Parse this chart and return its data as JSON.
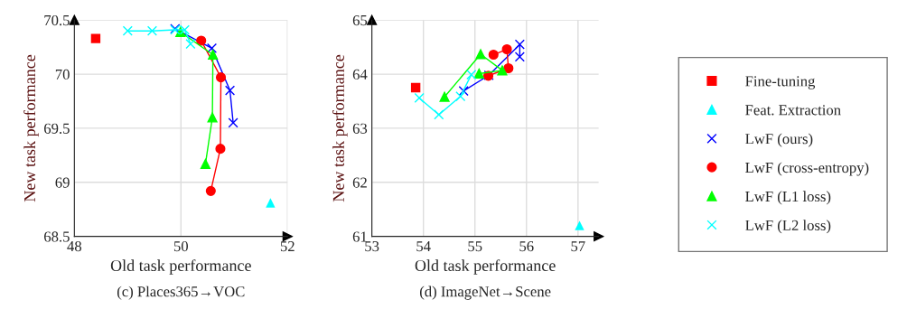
{
  "chart_data": [
    {
      "type": "line",
      "xlabel": "Old task performance",
      "ylabel": "New task performance",
      "annotations": [
        "(c) Places365→VOC"
      ],
      "xlim": [
        48,
        52
      ],
      "xticks": [
        48,
        50,
        52
      ],
      "ylim": [
        68.5,
        70.5
      ],
      "yticks": [
        68.5,
        69,
        69.5,
        70,
        70.5
      ],
      "grid": true,
      "legend": "right",
      "series": [
        {
          "name": "Fine-tuning",
          "type": "scatter",
          "marker": "square",
          "color": "#ff0000",
          "x": [
            48.4
          ],
          "values": [
            70.33
          ]
        },
        {
          "name": "Feat. Extraction",
          "type": "scatter",
          "marker": "triangle",
          "color": "#00ffff",
          "x": [
            51.68
          ],
          "values": [
            68.81
          ]
        },
        {
          "name": "LwF (ours)",
          "marker": "cross",
          "color": "#0000ff",
          "x": [
            49.89,
            50.58,
            50.92,
            50.98
          ],
          "values": [
            70.42,
            70.24,
            69.85,
            69.55
          ]
        },
        {
          "name": "LwF (cross-entropy)",
          "marker": "circle",
          "color": "#ff0000",
          "x": [
            50.38,
            50.75,
            50.74,
            50.56
          ],
          "values": [
            70.31,
            69.97,
            69.31,
            68.92
          ]
        },
        {
          "name": "LwF (L1 loss)",
          "marker": "triangle",
          "color": "#00ff00",
          "x": [
            49.99,
            50.6,
            50.59,
            50.46
          ],
          "values": [
            70.39,
            70.18,
            69.6,
            69.17
          ]
        },
        {
          "name": "LwF (L2 loss)",
          "marker": "cross",
          "color": "#00ffff",
          "x": [
            49.0,
            49.46,
            49.89,
            50.07,
            50.18
          ],
          "values": [
            70.4,
            70.4,
            70.41,
            70.41,
            70.28
          ]
        }
      ]
    },
    {
      "type": "line",
      "xlabel": "Old task performance",
      "ylabel": "New task performance",
      "annotations": [
        "(d) ImageNet→Scene"
      ],
      "xlim": [
        53,
        57.4
      ],
      "xticks": [
        53,
        54,
        55,
        56,
        57
      ],
      "ylim": [
        61,
        65
      ],
      "yticks": [
        61,
        62,
        63,
        64,
        65
      ],
      "grid": true,
      "series": [
        {
          "name": "Fine-tuning",
          "type": "scatter",
          "marker": "square",
          "color": "#ff0000",
          "x": [
            53.85
          ],
          "values": [
            63.75
          ]
        },
        {
          "name": "Feat. Extraction",
          "type": "scatter",
          "marker": "triangle",
          "color": "#00ffff",
          "x": [
            57.03
          ],
          "values": [
            61.2
          ]
        },
        {
          "name": "LwF (ours)",
          "marker": "cross",
          "color": "#0000ff",
          "x": [
            54.78,
            55.27,
            55.87,
            55.87
          ],
          "values": [
            63.69,
            63.98,
            64.55,
            64.32
          ]
        },
        {
          "name": "LwF (cross-entropy)",
          "marker": "circle",
          "color": "#ff0000",
          "x": [
            55.36,
            55.62,
            55.65,
            55.26
          ],
          "values": [
            64.36,
            64.46,
            64.11,
            63.97
          ]
        },
        {
          "name": "LwF (L1 loss)",
          "marker": "triangle",
          "color": "#00ff00",
          "x": [
            54.41,
            55.11,
            55.53,
            55.08
          ],
          "values": [
            63.58,
            64.37,
            64.07,
            64.01
          ]
        },
        {
          "name": "LwF (L2 loss)",
          "marker": "cross",
          "color": "#00ffff",
          "x": [
            53.92,
            54.3,
            54.72,
            54.93
          ],
          "values": [
            63.56,
            63.25,
            63.59,
            63.99
          ]
        }
      ]
    }
  ]
}
